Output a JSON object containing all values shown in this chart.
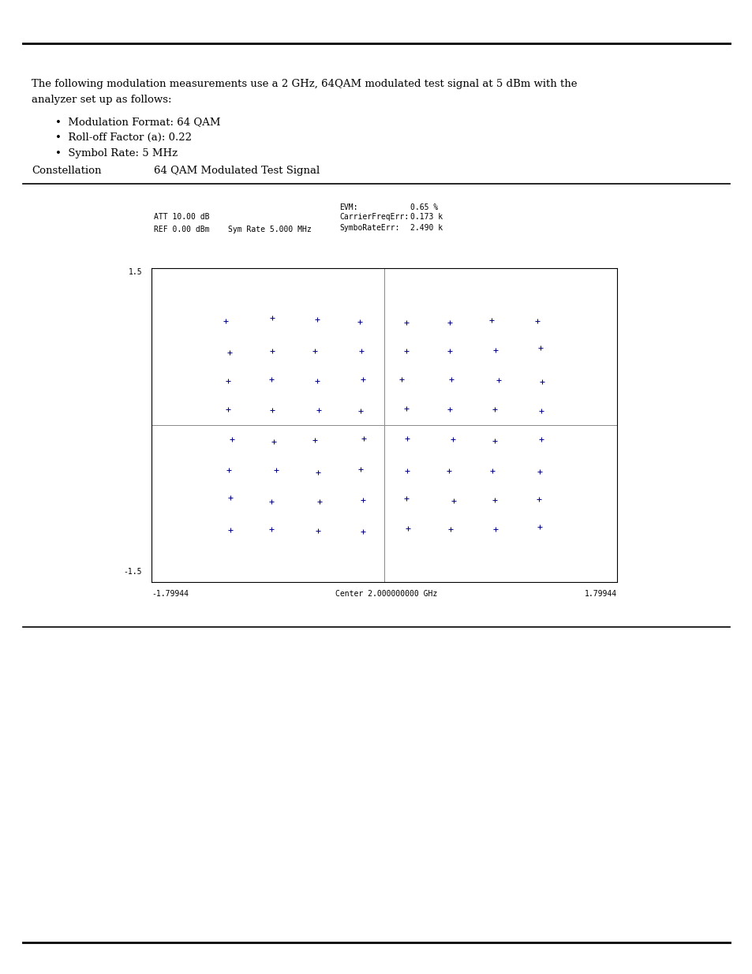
{
  "page_bg": "#ffffff",
  "intro_text_line1": "The following modulation measurements use a 2 GHz, 64QAM modulated test signal at 5 dBm with the",
  "intro_text_line2": "analyzer set up as follows:",
  "bullets": [
    "Modulation Format: 64 QAM",
    "Roll-off Factor (a): 0.22",
    "Symbol Rate: 5 MHz"
  ],
  "label_left": "Constellation",
  "label_right": "64 QAM Modulated Test Signal",
  "att_text": "ATT 10.00 dB",
  "ref_text": "REF 0.00 dBm    Sym Rate 5.000 MHz",
  "evm_label": "EVM:",
  "evm_value": "0.65 %",
  "carrier_label": "CarrierFreqErr:",
  "carrier_value": "0.173 k",
  "symbol_label": "SymboRateErr:",
  "symbol_value": "2.490 k",
  "x_left_label": "-1.79944",
  "x_center_label": "Center 2.000000000 GHz",
  "x_right_label": "1.79944",
  "y_top_label": "1.5",
  "y_bottom_label": "-1.5",
  "marker_color": "#00008B",
  "qam_levels": [
    -1.0,
    -0.714,
    -0.429,
    -0.143,
    0.143,
    0.429,
    0.714,
    1.0
  ],
  "font_serif": "DejaVu Serif",
  "font_mono": "DejaVu Sans Mono",
  "text_fontsize": 9.5,
  "small_fontsize": 7.5,
  "header_fontsize": 7.0
}
